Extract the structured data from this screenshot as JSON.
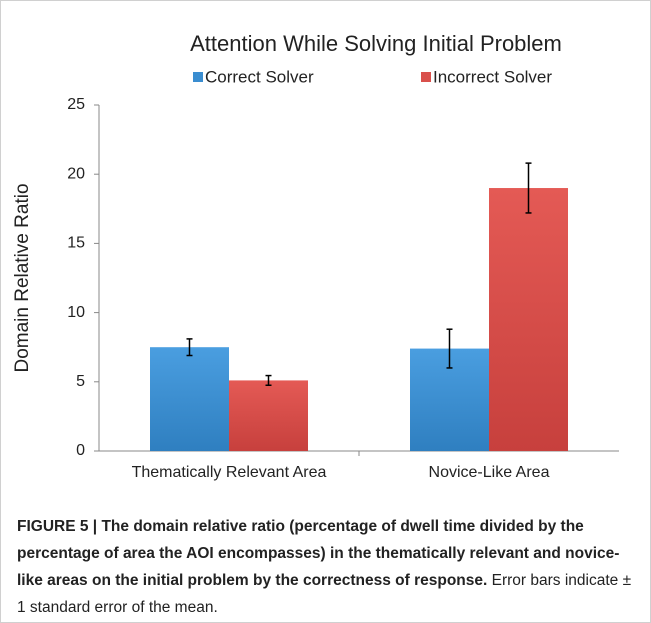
{
  "chart_data": {
    "type": "bar",
    "title": "Attention While Solving Initial Problem",
    "ylabel": "Domain Relative Ratio",
    "categories": [
      "Thematically Relevant Area",
      "Novice-Like Area"
    ],
    "series": [
      {
        "name": "Correct Solver",
        "color": "#3a8dd0",
        "values": [
          7.5,
          7.4
        ],
        "errors": [
          0.6,
          1.4
        ]
      },
      {
        "name": "Incorrect Solver",
        "color": "#d9504c",
        "values": [
          5.1,
          19.0
        ],
        "errors": [
          0.35,
          1.8
        ]
      }
    ],
    "ylim": [
      0,
      25
    ],
    "yticks": [
      0,
      5,
      10,
      15,
      20,
      25
    ],
    "grid": false,
    "legend": "top"
  },
  "caption": {
    "label": "FIGURE 5 |",
    "title": "The domain relative ratio (percentage of dwell time divided by the percentage of area the AOI encompasses) in the thematically relevant and novice-like areas on the initial problem by the correctness of response.",
    "text": "Error bars indicate ± 1 standard error of the mean."
  }
}
